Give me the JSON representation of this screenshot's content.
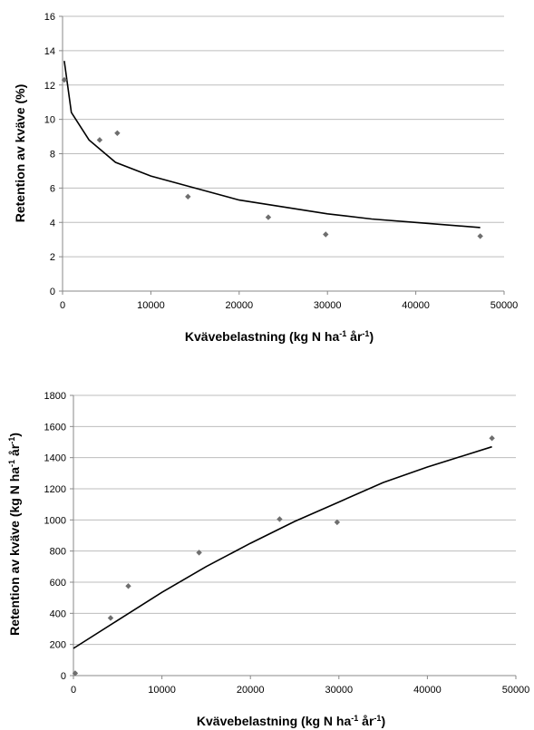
{
  "chart_data": [
    {
      "type": "scatter",
      "x": [
        200,
        4200,
        6200,
        14200,
        23300,
        29800,
        47300
      ],
      "y": [
        12.3,
        8.8,
        9.2,
        5.5,
        4.3,
        3.3,
        3.2
      ],
      "xlim": [
        0,
        50000
      ],
      "ylim": [
        0,
        16
      ],
      "xticks": [
        "0",
        "10000",
        "20000",
        "30000",
        "40000",
        "50000"
      ],
      "yticks": [
        "0",
        "2",
        "4",
        "6",
        "8",
        "10",
        "12",
        "14",
        "16"
      ],
      "xlabel": {
        "main": "Kvävebelastning (kg N ha",
        "sup1": "-1",
        "mid": " år",
        "sup2": "-1",
        "end": ")"
      },
      "ylabel": "Retention av kväve (%)",
      "trendline": {
        "type": "power",
        "x": [
          200,
          1000,
          3000,
          6000,
          10000,
          15000,
          20000,
          25000,
          30000,
          35000,
          40000,
          47300
        ],
        "y": [
          13.4,
          10.4,
          8.8,
          7.5,
          6.7,
          6.0,
          5.3,
          4.9,
          4.5,
          4.2,
          4.0,
          3.7
        ]
      },
      "grid": true,
      "legend": "none"
    },
    {
      "type": "scatter",
      "x": [
        200,
        4200,
        6200,
        14200,
        23300,
        29800,
        47300
      ],
      "y": [
        15,
        370,
        575,
        790,
        1005,
        985,
        1525
      ],
      "xlim": [
        0,
        50000
      ],
      "ylim": [
        0,
        1800
      ],
      "xticks": [
        "0",
        "10000",
        "20000",
        "30000",
        "40000",
        "50000"
      ],
      "yticks": [
        "0",
        "200",
        "400",
        "600",
        "800",
        "1000",
        "1200",
        "1400",
        "1600",
        "1800"
      ],
      "xlabel": {
        "main": "Kvävebelastning (kg N ha",
        "sup1": "-1",
        "mid": " år",
        "sup2": "-1",
        "end": ")"
      },
      "ylabel": {
        "main": "Retention av kväve (kg N ha",
        "sup1": "-1",
        "mid": " år",
        "sup2": "-1",
        "end": ")"
      },
      "trendline": {
        "type": "polynomial",
        "x": [
          0,
          5000,
          10000,
          15000,
          20000,
          25000,
          30000,
          35000,
          40000,
          47300
        ],
        "y": [
          175,
          355,
          535,
          700,
          850,
          990,
          1115,
          1240,
          1340,
          1470
        ]
      },
      "grid": true,
      "legend": "none"
    }
  ]
}
